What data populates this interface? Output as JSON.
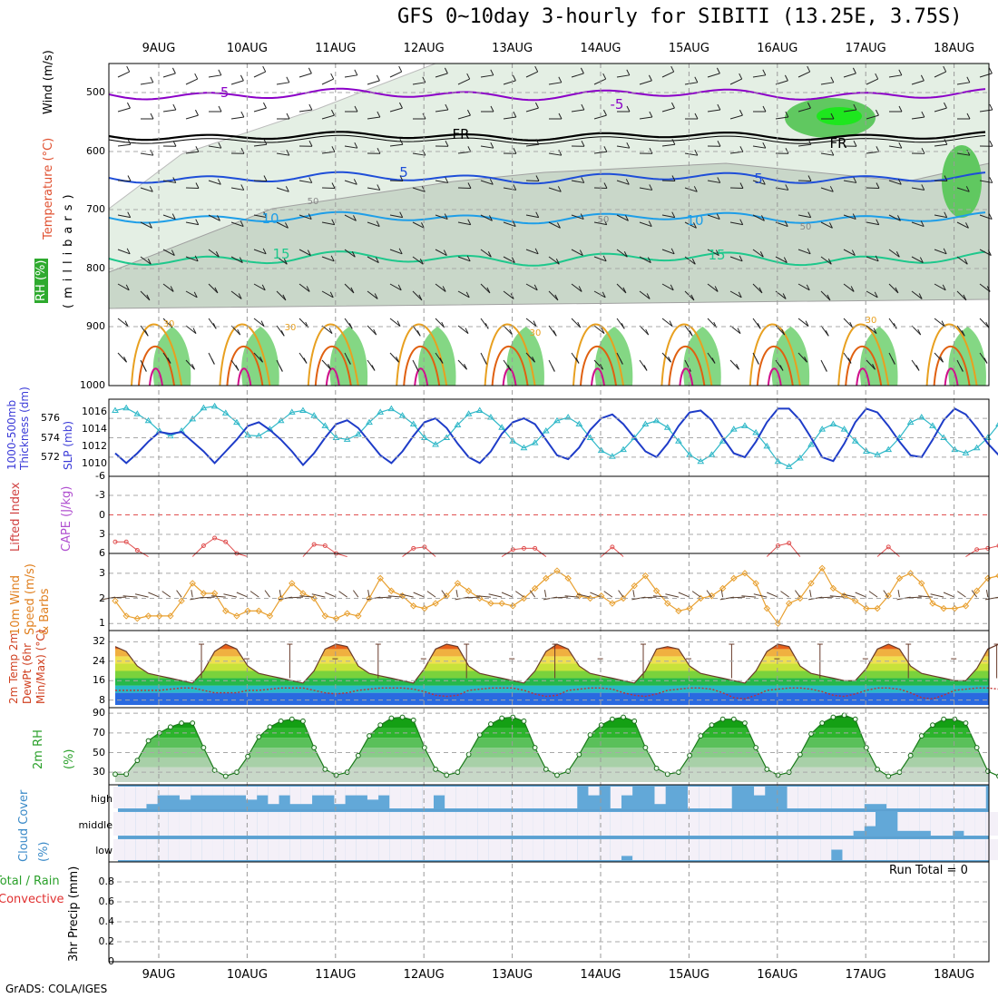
{
  "header": {
    "title": "GFS 0~10day 3-hourly for SIBITI (13.25E, 3.75S)",
    "footer": "GrADS: COLA/IGES"
  },
  "dates": [
    "9AUG",
    "10AUG",
    "11AUG",
    "12AUG",
    "13AUG",
    "14AUG",
    "15AUG",
    "16AUG",
    "17AUG",
    "18AUG"
  ],
  "panels": {
    "upper_air": {
      "ylabel_rh": "RH (%)",
      "ylabel_temp": "Temperature (°C)",
      "ylabel_wind": "Wind (m/s)",
      "ylabel_levels": "(millibars)",
      "levels": [
        "500",
        "600",
        "700",
        "800",
        "900",
        "1000"
      ],
      "contour_labels": [
        "-5",
        "-5",
        "FR",
        "FR",
        "5",
        "5",
        "10",
        "10",
        "15",
        "15",
        "30",
        "30",
        "30",
        "30",
        "50",
        "50",
        "50"
      ],
      "colors": {
        "m5": "#8b00c8",
        "fr": "#000000",
        "p5": "#1e4ed8",
        "p10": "#1e9ee8",
        "p15": "#1ec88c",
        "p30": "#e8a020",
        "hot": "#e06010",
        "max": "#d0108c"
      }
    },
    "thickness": {
      "ylabel_left": "1000-500mb Thickness (dm)",
      "ylabel_right": "SLP (mb)",
      "left_ticks": [
        "576",
        "574",
        "572"
      ],
      "right_ticks": [
        "1016",
        "1014",
        "1012",
        "1010"
      ],
      "slp_color": "#2fb8c8",
      "thk_color": "#1e3cc8"
    },
    "stability": {
      "ylabel_left": "Lifted Index",
      "ylabel_right": "CAPE (J/kg)",
      "ticks": [
        "-6",
        "-3",
        "0",
        "3",
        "6"
      ]
    },
    "wind10m": {
      "ylabel": "10m Wind Speed (m/s) & Barbs",
      "ticks": [
        "3",
        "2",
        "1"
      ]
    },
    "temp2m": {
      "ylabel": "2m Temp 2m DewPt (6hr Min/Max) (°C)",
      "ticks": [
        "32",
        "24",
        "16",
        "8"
      ]
    },
    "rh2m": {
      "ylabel": "2m RH (%)",
      "ticks": [
        "90",
        "70",
        "50",
        "30"
      ]
    },
    "cloud": {
      "ylabel": "Cloud Cover (%)",
      "levels": [
        "high",
        "middle",
        "low"
      ],
      "bg_color": "#62a8d8",
      "clear_color": "#f4f0f8"
    },
    "precip": {
      "ylabel": "3hr Precip (mm)",
      "legend_total": "Total / Rain",
      "legend_conv": "Convective",
      "run_total": "Run Total = 0",
      "ticks": [
        "0.8",
        "0.6",
        "0.4",
        "0.2",
        "0"
      ]
    }
  },
  "chart_data": [
    {
      "type": "line",
      "title": "Sea level pressure",
      "ylabel": "SLP (mb)",
      "x_start": "8AUG 12Z",
      "x_step_hours": 3,
      "ylim": [
        1009,
        1017
      ],
      "values": [
        1016.2,
        1016.5,
        1015.8,
        1015.0,
        1013.8,
        1013.2,
        1013.8,
        1015.2,
        1016.5,
        1016.7,
        1015.9,
        1014.8,
        1013.3,
        1013.2,
        1014.0,
        1015.0,
        1016.0,
        1016.2,
        1015.6,
        1014.4,
        1013.0,
        1012.8,
        1013.4,
        1014.8,
        1016.0,
        1016.4,
        1015.6,
        1014.6,
        1013.0,
        1012.2,
        1013.0,
        1014.5,
        1015.8,
        1016.2,
        1015.4,
        1014.2,
        1012.6,
        1011.8,
        1012.4,
        1013.8,
        1015.0,
        1015.4,
        1014.6,
        1013.0,
        1011.5,
        1010.8,
        1011.6,
        1013.0,
        1014.6,
        1015.0,
        1014.2,
        1012.6,
        1011.0,
        1010.2,
        1011.0,
        1012.6,
        1014.0,
        1014.4,
        1013.6,
        1012.0,
        1010.2,
        1009.6,
        1010.6,
        1012.2,
        1014.0,
        1014.6,
        1014.0,
        1012.6,
        1011.4,
        1011.0,
        1011.6,
        1013.0,
        1014.8,
        1015.4,
        1014.4,
        1013.0,
        1011.6,
        1011.2,
        1011.8,
        1013.0,
        1014.6,
        1015.0,
        1013.6,
        1012.2,
        1010.8,
        1010.0
      ]
    },
    {
      "type": "line",
      "title": "1000-500mb thickness",
      "ylabel": "Thickness (dm)",
      "x_start": "8AUG 12Z",
      "x_step_hours": 3,
      "ylim": [
        570.5,
        577.5
      ],
      "values": [
        572.4,
        571.4,
        572.4,
        573.6,
        574.6,
        574.4,
        574.6,
        573.6,
        572.6,
        571.4,
        572.6,
        573.8,
        575.2,
        575.6,
        574.8,
        573.8,
        572.6,
        571.2,
        572.4,
        574.0,
        575.4,
        575.8,
        575.0,
        573.6,
        572.2,
        571.4,
        572.6,
        574.2,
        575.6,
        576.0,
        575.0,
        573.4,
        572.0,
        571.4,
        572.6,
        574.4,
        575.6,
        576.0,
        575.4,
        573.8,
        572.2,
        571.8,
        573.0,
        574.8,
        576.0,
        576.4,
        575.4,
        574.0,
        572.6,
        572.0,
        573.4,
        575.2,
        576.6,
        576.8,
        575.8,
        574.0,
        572.4,
        572.0,
        573.6,
        575.6,
        577.0,
        577.0,
        575.8,
        574.0,
        572.0,
        571.6,
        573.4,
        575.6,
        577.0,
        576.6,
        575.2,
        573.6,
        572.2,
        572.0,
        573.8,
        575.8,
        577.0,
        576.4,
        575.0,
        573.4,
        572.2,
        572.4,
        573.8,
        575.4,
        576.4,
        576.2
      ]
    },
    {
      "type": "line",
      "title": "Lifted index",
      "ylabel": "Lifted Index",
      "x_start": "8AUG 12Z",
      "x_step_hours": 3,
      "ylim": [
        6,
        -6
      ],
      "values": [
        4.2,
        4.2,
        5.5,
        6.5,
        6.5,
        6.5,
        6.5,
        6.5,
        4.8,
        3.6,
        4.2,
        6.0,
        6.5,
        6.5,
        6.5,
        6.5,
        6.5,
        6.5,
        4.6,
        4.8,
        6.0,
        6.5,
        6.5,
        6.5,
        6.5,
        6.5,
        6.5,
        5.2,
        5.0,
        6.5,
        6.5,
        6.5,
        6.5,
        6.5,
        6.5,
        6.5,
        5.4,
        5.2,
        5.2,
        6.5,
        6.5,
        6.5,
        6.5,
        6.5,
        6.5,
        5.0,
        6.5,
        6.5,
        6.5,
        6.5,
        6.5,
        6.5,
        6.5,
        6.5,
        6.5,
        6.5,
        6.5,
        6.5,
        6.5,
        6.5,
        4.8,
        4.4,
        6.5,
        6.5,
        6.5,
        6.5,
        6.5,
        6.5,
        6.5,
        6.5,
        5.0,
        6.5,
        6.5,
        6.5,
        6.5,
        6.5,
        6.5,
        6.5,
        5.4,
        5.2,
        4.8,
        6.5,
        6.5,
        6.5,
        6.5,
        6.5
      ]
    },
    {
      "type": "line",
      "title": "10m wind speed",
      "ylabel": "Speed (m/s)",
      "x_start": "8AUG 12Z",
      "x_step_hours": 3,
      "ylim": [
        0.9,
        3.5
      ],
      "values": [
        1.9,
        1.3,
        1.2,
        1.3,
        1.3,
        1.3,
        1.9,
        2.6,
        2.2,
        2.2,
        1.5,
        1.3,
        1.5,
        1.5,
        1.3,
        2.0,
        2.6,
        2.2,
        2.0,
        1.3,
        1.2,
        1.4,
        1.3,
        2.0,
        2.8,
        2.3,
        2.1,
        1.7,
        1.6,
        1.8,
        2.1,
        2.6,
        2.3,
        2.0,
        1.8,
        1.8,
        1.7,
        2.0,
        2.4,
        2.8,
        3.1,
        2.8,
        2.1,
        2.0,
        2.1,
        1.8,
        2.0,
        2.5,
        2.9,
        2.3,
        1.8,
        1.5,
        1.6,
        2.0,
        2.1,
        2.4,
        2.8,
        3.0,
        2.6,
        1.6,
        1.0,
        1.8,
        2.0,
        2.6,
        3.2,
        2.4,
        2.1,
        1.9,
        1.6,
        1.6,
        2.1,
        2.8,
        3.0,
        2.6,
        1.8,
        1.6,
        1.6,
        1.7,
        2.3,
        2.8,
        2.9,
        2.6,
        2.1,
        1.5,
        1.2,
        1.4
      ]
    },
    {
      "type": "line",
      "title": "2m temperature",
      "ylabel": "Temp (°C)",
      "x_start": "8AUG 12Z",
      "x_step_hours": 3,
      "ylim": [
        6,
        34
      ],
      "values": [
        30,
        28,
        22,
        19,
        18,
        17,
        16,
        15,
        20,
        28,
        31,
        29,
        22,
        19,
        18,
        17,
        16,
        15,
        20,
        29,
        31,
        30,
        22,
        19,
        18,
        17,
        16,
        15,
        21,
        29,
        31,
        30,
        22,
        19,
        18,
        17,
        16,
        15,
        20,
        28,
        31,
        29,
        22,
        19,
        18,
        17,
        16,
        15,
        20,
        29,
        30,
        29,
        22,
        19,
        18,
        17,
        16,
        15,
        20,
        28,
        31,
        30,
        22,
        19,
        18,
        17,
        16,
        16,
        21,
        29,
        31,
        29,
        22,
        19,
        18,
        17,
        16,
        16,
        21,
        29,
        31,
        29,
        22,
        19,
        18,
        17
      ]
    },
    {
      "type": "line",
      "title": "2m dew point",
      "ylabel": "DewPt (°C)",
      "x_start": "8AUG 12Z",
      "x_step_hours": 3,
      "ylim": [
        6,
        34
      ],
      "values": [
        12,
        12,
        12,
        12,
        12,
        12.5,
        13,
        13,
        12,
        11,
        11,
        11,
        12,
        12,
        12.5,
        13,
        13,
        13,
        12,
        11,
        10.5,
        11,
        12,
        12.5,
        13,
        13,
        13,
        12.5,
        11.5,
        10,
        9.5,
        10,
        12,
        12.5,
        13,
        13,
        13,
        12,
        10.5,
        9.5,
        10,
        12,
        12.5,
        13,
        13,
        12.5,
        11,
        10,
        9.5,
        10.5,
        12,
        12.5,
        13,
        13,
        12.5,
        11,
        9,
        8.5,
        10,
        12,
        12.5,
        13,
        13,
        12.5,
        11.5,
        10,
        9.5,
        10.5,
        12,
        13,
        13,
        12.5,
        11,
        9,
        8.5,
        10,
        12,
        12.5,
        13,
        13,
        12.5,
        11.5,
        10.5,
        10,
        11.5,
        12.5
      ]
    },
    {
      "type": "area",
      "title": "2m relative humidity",
      "ylabel": "RH (%)",
      "x_start": "8AUG 12Z",
      "x_step_hours": 3,
      "ylim": [
        20,
        92
      ],
      "values": [
        28,
        28,
        42,
        62,
        70,
        76,
        80,
        80,
        55,
        32,
        26,
        30,
        46,
        66,
        76,
        82,
        84,
        82,
        55,
        33,
        27,
        30,
        47,
        67,
        78,
        85,
        86,
        83,
        55,
        33,
        27,
        30,
        48,
        68,
        79,
        85,
        86,
        82,
        55,
        33,
        27,
        31,
        48,
        68,
        78,
        84,
        86,
        82,
        55,
        34,
        28,
        30,
        47,
        67,
        78,
        84,
        84,
        80,
        55,
        33,
        27,
        30,
        48,
        69,
        80,
        86,
        88,
        84,
        55,
        33,
        26,
        30,
        47,
        67,
        78,
        84,
        84,
        80,
        55,
        31,
        26,
        28,
        45,
        65,
        77,
        82
      ]
    },
    {
      "type": "table",
      "title": "Cloud cover",
      "columns": [
        "high",
        "middle",
        "low"
      ],
      "x_start": "8AUG 12Z",
      "x_step_hours": 3,
      "high_pct": [
        0,
        0,
        0,
        20,
        60,
        60,
        40,
        60,
        60,
        60,
        60,
        60,
        40,
        60,
        20,
        60,
        20,
        20,
        60,
        60,
        20,
        60,
        60,
        40,
        60,
        0,
        0,
        0,
        0,
        60,
        0,
        0,
        0,
        0,
        0,
        0,
        0,
        0,
        0,
        0,
        0,
        0,
        100,
        60,
        100,
        0,
        60,
        100,
        100,
        20,
        100,
        100,
        0,
        0,
        0,
        0,
        100,
        100,
        60,
        100,
        100,
        0,
        0,
        0,
        0,
        0,
        0,
        0,
        20,
        20,
        0,
        0,
        0,
        0,
        0,
        0,
        0,
        0,
        0,
        100,
        100,
        100,
        0,
        0,
        0,
        0
      ],
      "middle_pct": [
        0,
        0,
        0,
        0,
        0,
        0,
        0,
        0,
        0,
        0,
        0,
        0,
        0,
        0,
        0,
        0,
        0,
        0,
        0,
        0,
        0,
        0,
        0,
        0,
        0,
        0,
        0,
        0,
        0,
        0,
        0,
        0,
        0,
        0,
        0,
        0,
        0,
        0,
        0,
        0,
        0,
        0,
        0,
        0,
        0,
        0,
        0,
        0,
        0,
        0,
        0,
        0,
        0,
        0,
        0,
        0,
        0,
        0,
        0,
        0,
        0,
        0,
        0,
        0,
        0,
        0,
        0,
        20,
        40,
        100,
        100,
        20,
        20,
        20,
        0,
        0,
        20,
        0,
        0,
        0,
        0,
        0,
        0,
        0,
        0,
        0
      ],
      "low_pct": [
        0,
        0,
        0,
        0,
        0,
        0,
        0,
        0,
        0,
        0,
        0,
        0,
        0,
        0,
        0,
        0,
        0,
        0,
        0,
        0,
        0,
        0,
        0,
        0,
        0,
        0,
        0,
        0,
        0,
        0,
        0,
        0,
        0,
        0,
        0,
        0,
        0,
        0,
        0,
        0,
        0,
        0,
        0,
        0,
        0,
        0,
        20,
        0,
        0,
        0,
        0,
        0,
        0,
        0,
        0,
        0,
        0,
        0,
        0,
        0,
        0,
        0,
        0,
        0,
        0,
        50,
        0,
        0,
        0,
        0,
        0,
        0,
        0,
        0,
        0,
        0,
        0,
        0,
        0,
        0,
        0,
        0,
        0,
        0,
        0,
        0
      ]
    },
    {
      "type": "bar",
      "title": "3hr precipitation",
      "ylabel": "3hr Precip (mm)",
      "ylim": [
        0,
        1
      ],
      "run_total": 0,
      "values": []
    }
  ]
}
